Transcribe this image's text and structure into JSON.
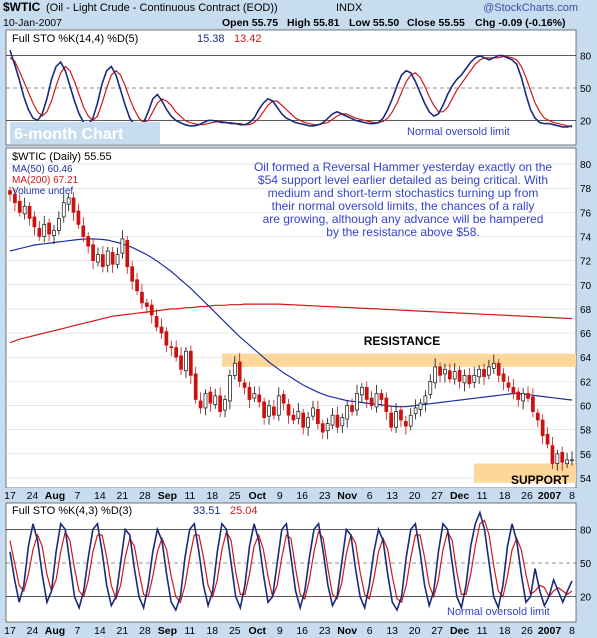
{
  "header": {
    "ticker": "$WTIC",
    "title": "(Oil - Light Crude - Continuous Contract (EOD))",
    "exchange": "INDX",
    "date": "10-Jan-2007",
    "open": "Open 55.75",
    "high": "High 55.81",
    "low": "Low 55.50",
    "close": "Close 55.55",
    "chg": "Chg -0.09 (-0.16%)",
    "watermark": "@StockCharts.com"
  },
  "colors": {
    "background": "#c8dcf0",
    "plot": "#ffffff",
    "stoch_k": "#1a2a7a",
    "stoch_d": "#d01818",
    "ma50": "#2030a0",
    "ma200": "#d01818",
    "up_candle": "#111111",
    "down_candle": "#cc1111",
    "band": "#fbd79a",
    "annotation_blue": "#3344cc",
    "chart_title": "#ffffff"
  },
  "chart_data": [
    {
      "type": "line",
      "name": "top-stochastic",
      "legend": "Full STO %K(14,4) %D(5) 15.38, 13.42",
      "legend_k": "Full STO %K(14,4) %D(5)",
      "legend_k_value": "15.38",
      "legend_d_value": "13.42",
      "ylim": [
        0,
        100
      ],
      "ticks": [
        20,
        50,
        80
      ],
      "reference_lines": [
        20,
        50,
        80
      ],
      "annotation": "Normal oversold limit",
      "chart_title": "6-month Chart",
      "n": 123,
      "series": [
        {
          "key": "k",
          "values": [
            85,
            72,
            58,
            42,
            30,
            22,
            20,
            26,
            40,
            58,
            70,
            74,
            66,
            52,
            38,
            26,
            18,
            16,
            22,
            36,
            54,
            66,
            70,
            62,
            48,
            34,
            22,
            16,
            14,
            18,
            28,
            40,
            44,
            38,
            30,
            24,
            20,
            18,
            16,
            15,
            15,
            16,
            18,
            20,
            20,
            19,
            18,
            18,
            17,
            17,
            16,
            16,
            18,
            22,
            30,
            36,
            40,
            38,
            32,
            26,
            22,
            20,
            18,
            17,
            16,
            15,
            15,
            16,
            18,
            22,
            26,
            28,
            26,
            24,
            22,
            20,
            19,
            18,
            17,
            17,
            18,
            22,
            30,
            40,
            52,
            62,
            66,
            64,
            56,
            46,
            36,
            28,
            24,
            26,
            34,
            44,
            52,
            58,
            62,
            68,
            74,
            78,
            80,
            78,
            76,
            78,
            80,
            80,
            78,
            76,
            72,
            60,
            44,
            30,
            22,
            18,
            17,
            17,
            16,
            15,
            14,
            14,
            15
          ]
        },
        {
          "key": "d",
          "values": [
            78,
            75,
            66,
            56,
            46,
            36,
            28,
            24,
            28,
            38,
            52,
            64,
            70,
            66,
            56,
            44,
            32,
            24,
            20,
            24,
            36,
            50,
            62,
            66,
            62,
            52,
            40,
            30,
            22,
            18,
            20,
            28,
            36,
            40,
            38,
            34,
            28,
            24,
            20,
            18,
            17,
            16,
            16,
            17,
            18,
            19,
            19,
            18,
            18,
            17,
            17,
            16,
            16,
            18,
            22,
            28,
            34,
            38,
            38,
            34,
            30,
            26,
            22,
            20,
            18,
            17,
            16,
            16,
            17,
            18,
            21,
            24,
            26,
            26,
            24,
            22,
            21,
            20,
            19,
            18,
            18,
            19,
            22,
            28,
            36,
            46,
            56,
            62,
            64,
            60,
            52,
            42,
            34,
            28,
            28,
            32,
            40,
            48,
            54,
            60,
            66,
            72,
            76,
            78,
            78,
            78,
            78,
            79,
            79,
            78,
            76,
            70,
            60,
            48,
            36,
            28,
            22,
            20,
            18,
            17,
            16,
            15,
            14
          ]
        }
      ]
    },
    {
      "type": "candlestick",
      "name": "price",
      "legend_price": "$WTIC (Daily) 55.55",
      "legend_ma50": "MA(50) 60.46",
      "legend_ma200": "MA(200) 67.21",
      "legend_volume": "Volume undef",
      "ylim": [
        53.5,
        81
      ],
      "y_ticks": [
        54,
        56,
        58,
        60,
        62,
        64,
        66,
        68,
        70,
        72,
        74,
        76,
        78,
        80
      ],
      "annotation_text": [
        "Oil formed a Reversal Hammer yesterday exactly on the",
        "$54 support level earlier detailed as being critical. With",
        "medium and short-term stochastics turning up from",
        "their normal oversold limits, the chances of a rally",
        "are growing, although any advance will be hampered",
        "by the resistance above $58."
      ],
      "resistance_label": "RESISTANCE",
      "resistance_range": [
        63.2,
        64.3
      ],
      "support_label": "SUPPORT",
      "support_range": [
        53.6,
        55.2
      ],
      "close": [
        77.5,
        76.8,
        76.0,
        76.5,
        75.5,
        74.8,
        74.0,
        75.0,
        74.2,
        74.5,
        75.5,
        76.8,
        77.2,
        76.0,
        75.0,
        74.0,
        73.2,
        72.0,
        72.5,
        71.5,
        72.8,
        71.7,
        72.5,
        73.8,
        71.5,
        70.3,
        69.5,
        68.5,
        68.2,
        67.5,
        66.5,
        66.0,
        65.0,
        64.8,
        64.0,
        63.0,
        64.5,
        62.5,
        60.5,
        59.8,
        61.0,
        60.2,
        60.8,
        59.5,
        60.5,
        62.5,
        63.5,
        62.0,
        61.5,
        60.5,
        61.0,
        60.3,
        59.0,
        60.0,
        59.2,
        60.8,
        60.2,
        59.2,
        58.8,
        59.5,
        58.2,
        59.0,
        59.8,
        58.5,
        57.8,
        58.5,
        59.2,
        58.2,
        59.0,
        60.0,
        59.5,
        61.0,
        61.5,
        60.5,
        60.0,
        61.0,
        60.5,
        59.5,
        58.2,
        59.5,
        58.8,
        58.3,
        59.2,
        59.8,
        60.2,
        60.8,
        62.0,
        63.2,
        62.5,
        63.0,
        62.2,
        62.8,
        62.0,
        62.5,
        61.8,
        62.5,
        63.0,
        62.4,
        63.2,
        63.5,
        62.5,
        62.0,
        61.5,
        61.0,
        60.5,
        61.0,
        60.6,
        59.5,
        58.8,
        57.5,
        56.8,
        55.2,
        56.0,
        55.3,
        55.5,
        55.5
      ],
      "series": [
        {
          "key": "ma50",
          "values": [
            72.8,
            72.9,
            73.0,
            73.1,
            73.2,
            73.3,
            73.35,
            73.4,
            73.45,
            73.5,
            73.55,
            73.6,
            73.65,
            73.7,
            73.75,
            73.78,
            73.8,
            73.8,
            73.78,
            73.75,
            73.7,
            73.6,
            73.5,
            73.4,
            73.25,
            73.1,
            72.9,
            72.7,
            72.5,
            72.25,
            72.0,
            71.7,
            71.4,
            71.1,
            70.75,
            70.4,
            70.05,
            69.7,
            69.3,
            68.9,
            68.5,
            68.1,
            67.7,
            67.3,
            66.9,
            66.5,
            66.1,
            65.7,
            65.35,
            65.0,
            64.65,
            64.3,
            63.95,
            63.6,
            63.3,
            63.0,
            62.7,
            62.45,
            62.2,
            61.95,
            61.7,
            61.5,
            61.3,
            61.1,
            60.95,
            60.8,
            60.7,
            60.6,
            60.5,
            60.4,
            60.35,
            60.3,
            60.25,
            60.2,
            60.15,
            60.1,
            60.05,
            60.0,
            59.95,
            59.9,
            59.9,
            59.9,
            59.95,
            60.0,
            60.05,
            60.1,
            60.15,
            60.2,
            60.25,
            60.3,
            60.35,
            60.4,
            60.45,
            60.5,
            60.55,
            60.6,
            60.65,
            60.7,
            60.75,
            60.8,
            60.85,
            60.9,
            60.95,
            61.0,
            61.0,
            60.95,
            60.9,
            60.85,
            60.8,
            60.75,
            60.7,
            60.65,
            60.6,
            60.55,
            60.5,
            60.46
          ]
        },
        {
          "key": "ma200",
          "values": [
            65.2,
            65.35,
            65.5,
            65.6,
            65.7,
            65.8,
            65.9,
            66.0,
            66.1,
            66.2,
            66.3,
            66.4,
            66.5,
            66.6,
            66.7,
            66.8,
            66.9,
            67.0,
            67.1,
            67.2,
            67.3,
            67.4,
            67.45,
            67.5,
            67.55,
            67.6,
            67.65,
            67.7,
            67.75,
            67.8,
            67.85,
            67.9,
            67.95,
            68.0,
            68.0,
            68.05,
            68.1,
            68.1,
            68.15,
            68.2,
            68.2,
            68.25,
            68.3,
            68.3,
            68.3,
            68.35,
            68.35,
            68.35,
            68.4,
            68.4,
            68.4,
            68.4,
            68.4,
            68.4,
            68.4,
            68.4,
            68.38,
            68.36,
            68.34,
            68.32,
            68.3,
            68.28,
            68.26,
            68.24,
            68.22,
            68.2,
            68.18,
            68.16,
            68.14,
            68.12,
            68.1,
            68.08,
            68.06,
            68.04,
            68.02,
            68.0,
            67.98,
            67.96,
            67.94,
            67.92,
            67.9,
            67.88,
            67.86,
            67.84,
            67.82,
            67.8,
            67.78,
            67.76,
            67.74,
            67.72,
            67.7,
            67.68,
            67.66,
            67.64,
            67.62,
            67.6,
            67.58,
            67.56,
            67.54,
            67.52,
            67.5,
            67.48,
            67.46,
            67.44,
            67.42,
            67.4,
            67.38,
            67.36,
            67.34,
            67.32,
            67.3,
            67.28,
            67.26,
            67.24,
            67.22,
            67.21
          ]
        }
      ]
    },
    {
      "type": "line",
      "name": "bottom-stochastic",
      "legend": "Full STO %K(4,3) %D(3) 33.51, 25.04",
      "legend_k": "Full STO %K(4,3) %D(3)",
      "legend_k_value": "33.51",
      "legend_d_value": "25.04",
      "ylim": [
        0,
        100
      ],
      "ticks": [
        20,
        50,
        80
      ],
      "reference_lines": [
        20,
        50,
        80
      ],
      "annotation": "Normal oversold limit",
      "n": 123,
      "series": [
        {
          "key": "k",
          "values": [
            60,
            35,
            15,
            30,
            65,
            85,
            70,
            40,
            15,
            25,
            60,
            85,
            80,
            50,
            20,
            10,
            25,
            55,
            80,
            85,
            60,
            30,
            12,
            20,
            50,
            80,
            75,
            45,
            20,
            10,
            30,
            60,
            80,
            70,
            40,
            15,
            8,
            20,
            55,
            80,
            85,
            60,
            30,
            12,
            25,
            60,
            85,
            80,
            50,
            20,
            10,
            30,
            65,
            85,
            70,
            40,
            15,
            20,
            50,
            80,
            85,
            55,
            25,
            10,
            25,
            55,
            80,
            85,
            60,
            30,
            12,
            20,
            50,
            80,
            75,
            45,
            20,
            10,
            30,
            60,
            80,
            70,
            40,
            15,
            8,
            20,
            55,
            80,
            85,
            60,
            30,
            12,
            25,
            60,
            85,
            80,
            50,
            20,
            10,
            30,
            65,
            85,
            95,
            80,
            50,
            20,
            10,
            30,
            65,
            85,
            70,
            40,
            15,
            20,
            45,
            25,
            12,
            20,
            35,
            25,
            15,
            25,
            34
          ]
        },
        {
          "key": "d",
          "values": [
            70,
            50,
            30,
            25,
            40,
            62,
            75,
            65,
            40,
            25,
            35,
            60,
            78,
            70,
            45,
            25,
            20,
            35,
            60,
            75,
            75,
            55,
            30,
            18,
            30,
            55,
            72,
            65,
            42,
            22,
            20,
            38,
            60,
            72,
            62,
            38,
            20,
            15,
            30,
            55,
            75,
            75,
            55,
            30,
            20,
            35,
            62,
            78,
            70,
            42,
            22,
            22,
            40,
            65,
            75,
            62,
            38,
            20,
            30,
            55,
            75,
            72,
            45,
            22,
            18,
            35,
            60,
            78,
            72,
            45,
            22,
            18,
            32,
            58,
            75,
            68,
            42,
            22,
            18,
            36,
            60,
            72,
            62,
            38,
            18,
            15,
            30,
            55,
            75,
            75,
            55,
            30,
            20,
            35,
            62,
            78,
            70,
            42,
            22,
            22,
            40,
            65,
            85,
            88,
            75,
            48,
            25,
            20,
            38,
            62,
            72,
            62,
            40,
            22,
            25,
            30,
            28,
            20,
            25,
            28,
            25,
            22,
            25
          ]
        }
      ]
    }
  ],
  "x_axis": {
    "labels": [
      "17",
      "24",
      "Aug",
      "7",
      "14",
      "21",
      "28",
      "Sep",
      "11",
      "18",
      "25",
      "Oct",
      "9",
      "16",
      "23",
      "Nov",
      "6",
      "13",
      "20",
      "27",
      "Dec",
      "11",
      "18",
      "26",
      "2007",
      "8"
    ]
  }
}
